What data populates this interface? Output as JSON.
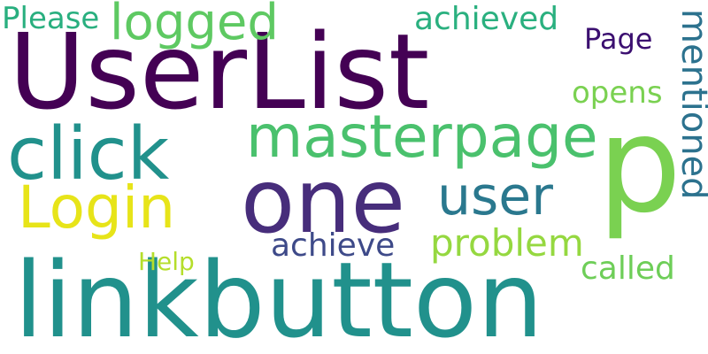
{
  "background_color": "#ffffff",
  "words": [
    {
      "key": "userlist",
      "text": "UserList",
      "color": "#440154"
    },
    {
      "key": "p",
      "text": "p",
      "color": "#7ad151"
    },
    {
      "key": "linkbutton",
      "text": "linkbutton",
      "color": "#21918c"
    },
    {
      "key": "one",
      "text": "one",
      "color": "#472d7b"
    },
    {
      "key": "click",
      "text": "click",
      "color": "#21918c"
    },
    {
      "key": "masterpage",
      "text": "masterpage",
      "color": "#4ac16d"
    },
    {
      "key": "login",
      "text": "Login",
      "color": "#e7e419"
    },
    {
      "key": "user",
      "text": "user",
      "color": "#2a788e"
    },
    {
      "key": "logged",
      "text": "logged",
      "color": "#5ec962"
    },
    {
      "key": "achieved",
      "text": "achieved",
      "color": "#2ab07f"
    },
    {
      "key": "please",
      "text": "Please",
      "color": "#29af7f"
    },
    {
      "key": "page",
      "text": "Page",
      "color": "#3b0f70"
    },
    {
      "key": "opens",
      "text": "opens",
      "color": "#7ad151"
    },
    {
      "key": "achieve",
      "text": "achieve",
      "color": "#3e4a89"
    },
    {
      "key": "problem",
      "text": "problem",
      "color": "#95d840"
    },
    {
      "key": "help",
      "text": "Help",
      "color": "#b5de2b"
    },
    {
      "key": "called",
      "text": "called",
      "color": "#6ece58"
    },
    {
      "key": "mentioned",
      "text": "mentioned",
      "color": "#2c728e"
    }
  ]
}
